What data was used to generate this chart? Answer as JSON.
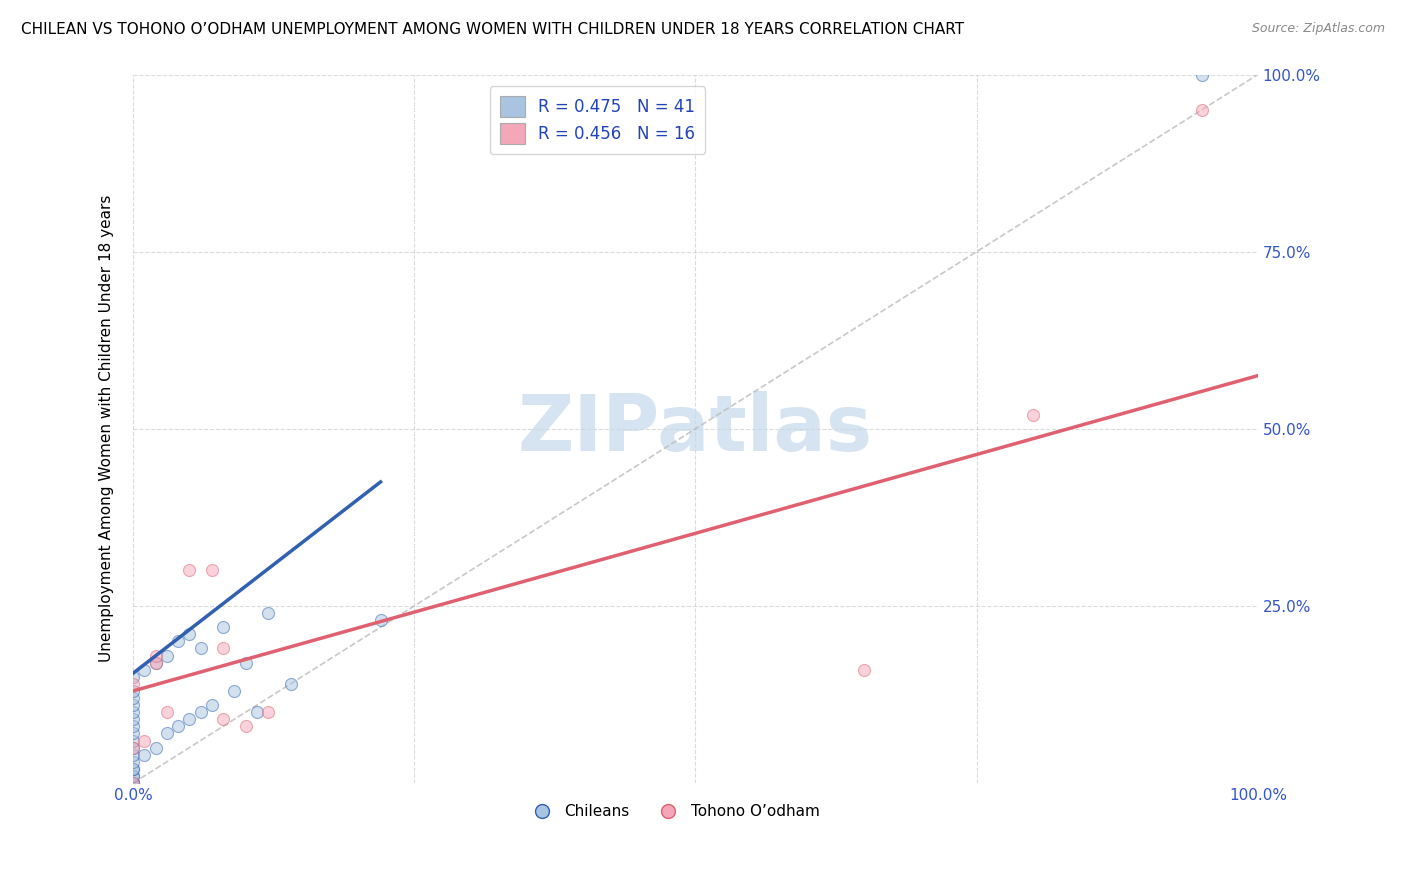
{
  "title": "CHILEAN VS TOHONO O’ODHAM UNEMPLOYMENT AMONG WOMEN WITH CHILDREN UNDER 18 YEARS CORRELATION CHART",
  "source": "Source: ZipAtlas.com",
  "ylabel": "Unemployment Among Women with Children Under 18 years",
  "blue_R": 0.475,
  "blue_N": 41,
  "pink_R": 0.456,
  "pink_N": 16,
  "blue_color": "#a8c4e0",
  "pink_color": "#f4a7b9",
  "blue_line_color": "#3060b0",
  "pink_line_color": "#e06070",
  "ref_line_color": "#bbbbbb",
  "watermark": "ZIPatlas",
  "watermark_color": "#c5d8ea",
  "legend_r_color": "#2244bb",
  "axis_tick_color": "#3355cc",
  "grid_color": "#cccccc",
  "chileans_x": [
    0.0,
    0.0,
    0.0,
    0.0,
    0.0,
    0.0,
    0.0,
    0.0,
    0.0,
    0.0,
    0.0,
    0.0,
    0.0,
    0.0,
    0.0,
    0.0,
    0.0,
    0.0,
    0.0,
    0.0,
    0.01,
    0.01,
    0.02,
    0.02,
    0.03,
    0.03,
    0.04,
    0.04,
    0.05,
    0.05,
    0.06,
    0.06,
    0.07,
    0.08,
    0.09,
    0.1,
    0.11,
    0.12,
    0.14,
    0.22,
    0.95
  ],
  "chileans_y": [
    0.0,
    0.0,
    0.0,
    0.0,
    0.01,
    0.01,
    0.02,
    0.02,
    0.03,
    0.04,
    0.05,
    0.06,
    0.07,
    0.08,
    0.09,
    0.1,
    0.11,
    0.12,
    0.13,
    0.15,
    0.04,
    0.16,
    0.05,
    0.17,
    0.18,
    0.07,
    0.2,
    0.08,
    0.09,
    0.21,
    0.1,
    0.19,
    0.11,
    0.22,
    0.13,
    0.17,
    0.1,
    0.24,
    0.14,
    0.23,
    1.0
  ],
  "tohono_x": [
    0.0,
    0.0,
    0.0,
    0.01,
    0.02,
    0.02,
    0.03,
    0.05,
    0.07,
    0.08,
    0.08,
    0.1,
    0.12,
    0.65,
    0.8,
    0.95
  ],
  "tohono_y": [
    0.0,
    0.05,
    0.14,
    0.06,
    0.17,
    0.18,
    0.1,
    0.3,
    0.3,
    0.09,
    0.19,
    0.08,
    0.1,
    0.16,
    0.52,
    0.95
  ],
  "blue_line_x0": 0.0,
  "blue_line_y0": 0.155,
  "blue_line_x1": 0.22,
  "blue_line_y1": 0.425,
  "pink_line_x0": 0.0,
  "pink_line_y0": 0.13,
  "pink_line_x1": 1.0,
  "pink_line_y1": 0.575,
  "scatter_size": 75,
  "scatter_alpha": 0.5,
  "legend_label_blue": "Chileans",
  "legend_label_pink": "Tohono O’odham",
  "title_fontsize": 11,
  "xticks": [
    0.0,
    0.25,
    0.5,
    0.75,
    1.0
  ],
  "yticks": [
    0.0,
    0.25,
    0.5,
    0.75,
    1.0
  ],
  "xticklabels": [
    "0.0%",
    "",
    "",
    "",
    "100.0%"
  ],
  "yticklabels": [
    "",
    "25.0%",
    "50.0%",
    "75.0%",
    "100.0%"
  ]
}
